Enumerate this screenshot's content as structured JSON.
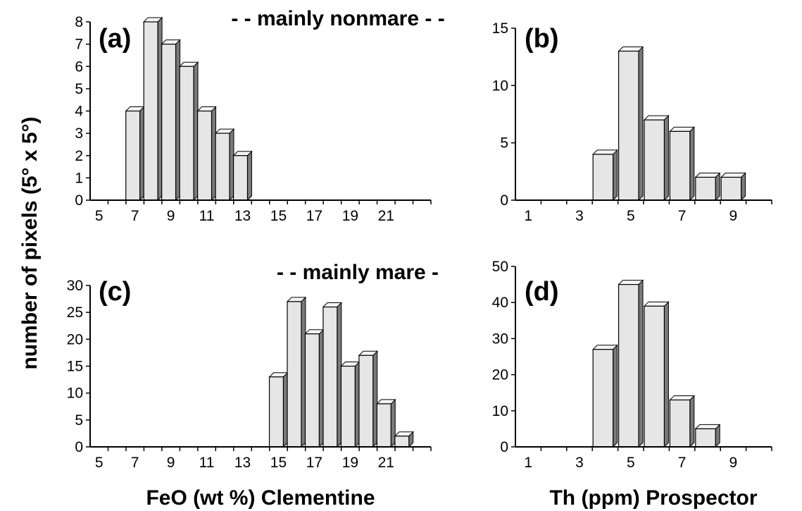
{
  "figure": {
    "ylabel": "number of pixels (5° x 5°)",
    "xlabel_feo": "FeO (wt %) Clementine",
    "xlabel_th": "Th (ppm) Prospector",
    "banner_top": "- - mainly nonmare - -",
    "banner_bottom": "- - mainly mare -"
  },
  "colors": {
    "bar_front": "#e6e6e6",
    "bar_top": "#f5f5f5",
    "bar_side": "#7a7a7a",
    "axis": "#000000"
  },
  "chart_data": [
    {
      "panel": "(a)",
      "type": "bar",
      "xlim": [
        4,
        23
      ],
      "ylim": [
        0,
        8
      ],
      "yticks": [
        0,
        1,
        2,
        3,
        4,
        5,
        6,
        7,
        8
      ],
      "xticks": [
        5,
        7,
        9,
        11,
        13,
        15,
        17,
        19,
        21
      ],
      "x": [
        7,
        8,
        9,
        10,
        11,
        12,
        13
      ],
      "values": [
        4,
        8,
        7,
        6,
        4,
        3,
        2
      ]
    },
    {
      "panel": "(b)",
      "type": "bar",
      "xlim": [
        0,
        10
      ],
      "ylim": [
        0,
        15
      ],
      "yticks": [
        0,
        5,
        10,
        15
      ],
      "xticks": [
        1,
        3,
        5,
        7,
        9
      ],
      "x": [
        4,
        5,
        6,
        7,
        8,
        9
      ],
      "values": [
        4,
        13,
        7,
        6,
        2,
        2
      ]
    },
    {
      "panel": "(c)",
      "type": "bar",
      "xlim": [
        4,
        23
      ],
      "ylim": [
        0,
        30
      ],
      "yticks": [
        0,
        5,
        10,
        15,
        20,
        25,
        30
      ],
      "xticks": [
        5,
        7,
        9,
        11,
        13,
        15,
        17,
        19,
        21
      ],
      "x": [
        15,
        16,
        17,
        18,
        19,
        20,
        21,
        22
      ],
      "values": [
        13,
        27,
        21,
        26,
        15,
        17,
        8,
        2
      ]
    },
    {
      "panel": "(d)",
      "type": "bar",
      "xlim": [
        0,
        10
      ],
      "ylim": [
        0,
        50
      ],
      "yticks": [
        0,
        10,
        20,
        30,
        40,
        50
      ],
      "xticks": [
        1,
        3,
        5,
        7,
        9
      ],
      "x": [
        4,
        5,
        6,
        7,
        8
      ],
      "values": [
        27,
        45,
        39,
        13,
        5
      ]
    }
  ]
}
